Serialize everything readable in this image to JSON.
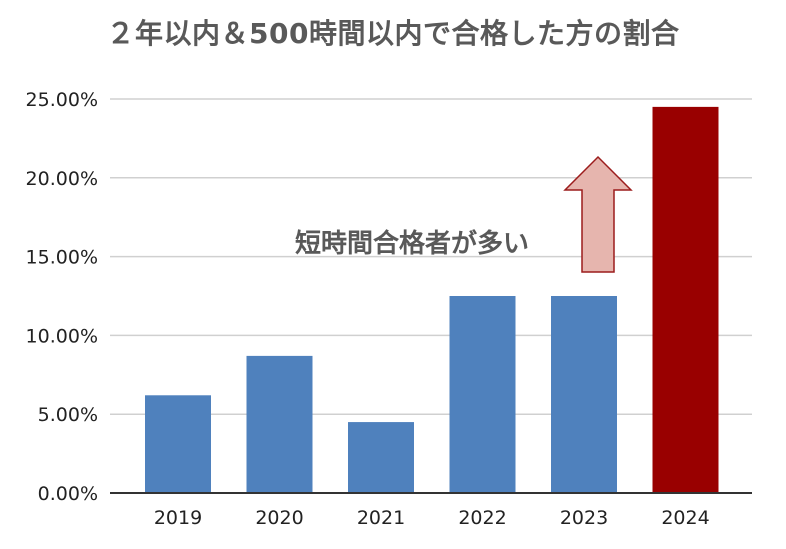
{
  "title": "２年以内＆500時間以内で合格した方の割合",
  "annotation": "短時間合格者が多い",
  "colors": {
    "bar": "#4f81bd",
    "highlight_bar": "#990000",
    "arrow_fill": "#e6b5ae",
    "arrow_stroke": "#9c1c1c",
    "gridline": "#d0d0d0",
    "axis": "#333333"
  },
  "chart_data": {
    "type": "bar",
    "title": "２年以内＆500時間以内で合格した方の割合",
    "xlabel": "",
    "ylabel": "",
    "categories": [
      "2019",
      "2020",
      "2021",
      "2022",
      "2023",
      "2024"
    ],
    "values": [
      6.2,
      8.7,
      4.5,
      12.5,
      12.5,
      24.5
    ],
    "highlight_index": 5,
    "ylim": [
      0,
      25
    ],
    "yticks": [
      0,
      5,
      10,
      15,
      20,
      25
    ],
    "ytick_labels": [
      "0.00%",
      "5.00%",
      "10.00%",
      "15.00%",
      "20.00%",
      "25.00%"
    ],
    "grid": true,
    "legend": "none"
  }
}
